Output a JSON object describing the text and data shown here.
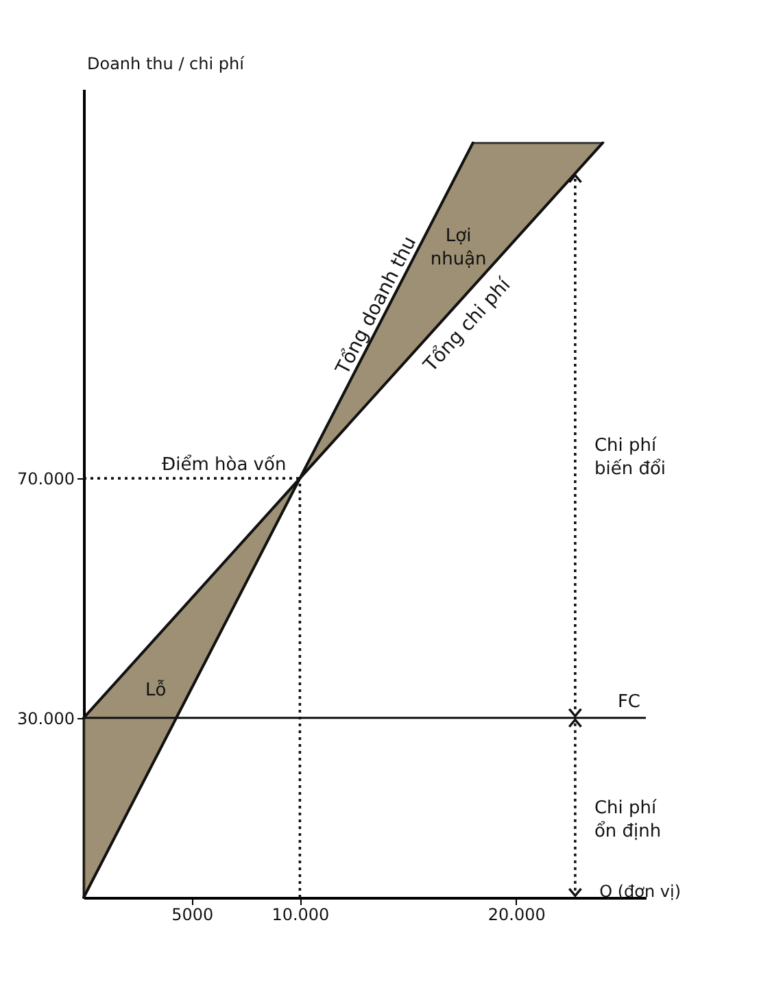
{
  "chart_data": {
    "type": "line",
    "xlabel": "Q (đơn vị)",
    "ylabel": "Doanh thu / chi phí",
    "series": [
      {
        "name": "Tổng doanh thu",
        "color": "#111111",
        "x": [
          0,
          10000,
          18000
        ],
        "values": [
          0,
          70000,
          126000
        ]
      },
      {
        "name": "Tổng chi phí",
        "color": "#111111",
        "x": [
          0,
          10000,
          24000
        ],
        "values": [
          30000,
          70000,
          126000
        ]
      }
    ],
    "xlim": [
      0,
      26000
    ],
    "ylim": [
      0,
      135000
    ],
    "xticks": [
      5000,
      {
        "value": 10000,
        "label": "10.000"
      },
      {
        "value": 20000,
        "label": "20.000"
      }
    ],
    "yticks": [
      {
        "value": 30000,
        "label": "30.000"
      },
      {
        "value": 70000,
        "label": "70.000"
      }
    ],
    "ref_lines": [
      {
        "axis": "y",
        "value": 30000,
        "label": "FC",
        "line_style": "solid"
      },
      {
        "axis": "x",
        "value": 10000,
        "label": null,
        "line_style": "dotted"
      },
      {
        "axis": "y",
        "value": 70000,
        "label": null,
        "line_style": "dotted"
      }
    ],
    "annotations": [
      {
        "text": "Điểm hòa vốn",
        "x": 10000,
        "y": 70000
      },
      "Lỗ",
      "Lợi nhuận",
      "Chi phí biến đổi",
      "Chi phí ổn định"
    ],
    "grid": false,
    "marker": "none",
    "line_style": "solid"
  }
}
